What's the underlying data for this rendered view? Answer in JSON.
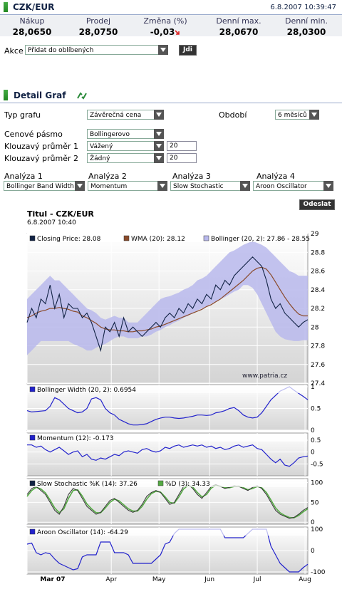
{
  "header": {
    "title": "CZK/EUR",
    "timestamp": "6.8.2007 10:39:47"
  },
  "quote": [
    {
      "label": "Nákup",
      "value": "28,0650"
    },
    {
      "label": "Prodej",
      "value": "28,0750"
    },
    {
      "label": "Změna (%)",
      "value": "-0,03"
    },
    {
      "label": "Denní max.",
      "value": "28,0670"
    },
    {
      "label": "Denní min.",
      "value": "28,0300"
    }
  ],
  "action": {
    "label": "Akce",
    "selected": "Přidat do oblíbených",
    "go_label": "Jdi"
  },
  "section": {
    "title": "Detail Graf"
  },
  "form": {
    "chart_type_label": "Typ grafu",
    "chart_type": "Závěrečná cena",
    "period_label": "Období",
    "period": "6 měsíců",
    "band_label": "Cenové pásmo",
    "band": "Bollingerovo",
    "ma1_label": "Klouzavý průměr 1",
    "ma1": "Vážený",
    "ma1_value": "20",
    "ma2_label": "Klouzavý průměr 2",
    "ma2": "Žádný",
    "ma2_value": "20",
    "analyses": [
      {
        "label": "Analýza 1",
        "value": "Bollinger Band Width"
      },
      {
        "label": "Analýza 2",
        "value": "Momentum"
      },
      {
        "label": "Analýza 3",
        "value": "Slow Stochastic"
      },
      {
        "label": "Analýza 4",
        "value": "Aroon Oscillator"
      }
    ],
    "submit_label": "Odeslat"
  },
  "chart_data": {
    "title": "Titul - CZK/EUR",
    "date": "6.8.2007 10:40",
    "watermark": "www.patria.cz",
    "x_labels": [
      "Mar 07",
      "Apr",
      "May",
      "Jun",
      "Jul",
      "Aug"
    ],
    "colors": {
      "price": "#112244",
      "wma": "#8a4a2a",
      "band": "#b8b8ec",
      "indicator": "#2222cc",
      "pct_d": "#55aa44"
    },
    "main": {
      "type": "line",
      "legend": [
        "Closing Price: 28.08",
        "WMA (20): 28.12",
        "Bollinger (20, 2): 27.86 - 28.55"
      ],
      "yticks": [
        27.4,
        27.6,
        27.8,
        28,
        28.2,
        28.4,
        28.6,
        28.8,
        29
      ],
      "ylim": [
        27.4,
        29.0
      ],
      "price": [
        28.05,
        28.2,
        28.1,
        28.3,
        28.25,
        28.45,
        28.2,
        28.35,
        28.1,
        28.25,
        28.2,
        28.2,
        28.1,
        28.15,
        28.05,
        27.9,
        27.75,
        28.0,
        27.95,
        28.05,
        27.9,
        28.1,
        27.95,
        28.0,
        27.95,
        27.9,
        27.95,
        28.0,
        28.05,
        28.0,
        28.1,
        28.15,
        28.1,
        28.2,
        28.15,
        28.25,
        28.2,
        28.3,
        28.25,
        28.35,
        28.3,
        28.45,
        28.4,
        28.5,
        28.45,
        28.55,
        28.6,
        28.65,
        28.7,
        28.75,
        28.7,
        28.65,
        28.5,
        28.3,
        28.2,
        28.25,
        28.15,
        28.1,
        28.05,
        28.0,
        28.05,
        28.08
      ],
      "wma": [
        28.1,
        28.12,
        28.15,
        28.17,
        28.18,
        28.2,
        28.2,
        28.21,
        28.2,
        28.19,
        28.17,
        28.16,
        28.12,
        28.1,
        28.07,
        28.04,
        28.0,
        27.98,
        27.97,
        27.97,
        27.96,
        27.96,
        27.95,
        27.95,
        27.96,
        27.96,
        27.97,
        27.98,
        28.0,
        28.01,
        28.03,
        28.05,
        28.07,
        28.09,
        28.11,
        28.13,
        28.15,
        28.17,
        28.19,
        28.22,
        28.24,
        28.27,
        28.3,
        28.34,
        28.38,
        28.42,
        28.46,
        28.5,
        28.55,
        28.6,
        28.63,
        28.64,
        28.62,
        28.56,
        28.48,
        28.4,
        28.32,
        28.25,
        28.19,
        28.14,
        28.12,
        28.12
      ],
      "band_upper": [
        28.3,
        28.35,
        28.4,
        28.45,
        28.5,
        28.55,
        28.5,
        28.5,
        28.45,
        28.4,
        28.35,
        28.3,
        28.25,
        28.2,
        28.18,
        28.15,
        28.1,
        28.08,
        28.1,
        28.12,
        28.1,
        28.1,
        28.05,
        28.05,
        28.05,
        28.1,
        28.15,
        28.2,
        28.25,
        28.3,
        28.32,
        28.33,
        28.35,
        28.37,
        28.4,
        28.42,
        28.45,
        28.5,
        28.52,
        28.55,
        28.6,
        28.65,
        28.7,
        28.75,
        28.8,
        28.82,
        28.85,
        28.88,
        28.9,
        28.92,
        28.9,
        28.88,
        28.85,
        28.8,
        28.75,
        28.7,
        28.65,
        28.6,
        28.58,
        28.55,
        28.55,
        28.55
      ],
      "band_lower": [
        27.7,
        27.75,
        27.8,
        27.85,
        27.85,
        27.85,
        27.85,
        27.85,
        27.85,
        27.85,
        27.82,
        27.8,
        27.78,
        27.75,
        27.75,
        27.78,
        27.8,
        27.82,
        27.85,
        27.88,
        27.9,
        27.9,
        27.88,
        27.88,
        27.88,
        27.9,
        27.9,
        27.92,
        27.95,
        27.97,
        28.0,
        28.02,
        28.05,
        28.07,
        28.1,
        28.12,
        28.15,
        28.18,
        28.2,
        28.22,
        28.25,
        28.27,
        28.3,
        28.32,
        28.35,
        28.38,
        28.4,
        28.45,
        28.45,
        28.42,
        28.35,
        28.25,
        28.15,
        28.05,
        27.95,
        27.9,
        27.87,
        27.86,
        27.85,
        27.85,
        27.86,
        27.86
      ]
    },
    "panels": [
      {
        "legend": "Bollinger Width (20, 2): 0.6954",
        "yticks": [
          0,
          0.5,
          1
        ],
        "ylim": [
          0,
          1.05
        ],
        "values": [
          0.45,
          0.42,
          0.43,
          0.44,
          0.45,
          0.55,
          0.75,
          0.7,
          0.6,
          0.5,
          0.45,
          0.4,
          0.42,
          0.5,
          0.72,
          0.75,
          0.7,
          0.5,
          0.4,
          0.35,
          0.25,
          0.2,
          0.15,
          0.12,
          0.12,
          0.13,
          0.15,
          0.2,
          0.25,
          0.28,
          0.3,
          0.3,
          0.28,
          0.27,
          0.28,
          0.3,
          0.32,
          0.35,
          0.35,
          0.34,
          0.35,
          0.4,
          0.42,
          0.45,
          0.5,
          0.52,
          0.45,
          0.35,
          0.3,
          0.28,
          0.3,
          0.4,
          0.55,
          0.7,
          0.8,
          0.9,
          0.95,
          1.0,
          0.92,
          0.85,
          0.78,
          0.7
        ]
      },
      {
        "legend": "Momentum (12): -0.173",
        "yticks": [
          -0.5,
          0,
          0.5
        ],
        "ylim": [
          -1.0,
          0.8
        ],
        "values": [
          0.3,
          0.3,
          0.2,
          0.25,
          0.1,
          0.0,
          0.1,
          0.2,
          0.05,
          -0.1,
          0.0,
          0.05,
          -0.2,
          -0.1,
          -0.3,
          -0.35,
          -0.25,
          -0.3,
          -0.2,
          -0.1,
          -0.15,
          0.0,
          0.05,
          0.0,
          -0.05,
          0.1,
          0.15,
          0.05,
          0.0,
          0.05,
          0.2,
          0.15,
          0.25,
          0.3,
          0.2,
          0.25,
          0.3,
          0.25,
          0.3,
          0.2,
          0.25,
          0.15,
          0.2,
          0.1,
          0.15,
          0.25,
          0.3,
          0.2,
          0.25,
          0.3,
          0.15,
          0.1,
          -0.1,
          -0.3,
          -0.45,
          -0.3,
          -0.55,
          -0.6,
          -0.45,
          -0.25,
          -0.2,
          -0.17
        ]
      },
      {
        "legend": "Slow Stochastic %K (14): 37.26",
        "legend2": "%D (3): 34.33",
        "yticks": [
          0,
          50,
          100
        ],
        "ylim": [
          -5,
          110
        ],
        "values": [
          70,
          85,
          90,
          80,
          70,
          50,
          30,
          20,
          40,
          70,
          85,
          80,
          60,
          40,
          30,
          20,
          25,
          40,
          55,
          60,
          50,
          40,
          30,
          25,
          30,
          45,
          65,
          75,
          80,
          75,
          60,
          45,
          50,
          70,
          90,
          95,
          85,
          70,
          60,
          75,
          90,
          95,
          90,
          85,
          88,
          92,
          90,
          85,
          80,
          88,
          92,
          85,
          70,
          50,
          30,
          20,
          15,
          10,
          12,
          20,
          30,
          37
        ],
        "values2": [
          65,
          80,
          88,
          84,
          74,
          56,
          36,
          24,
          34,
          60,
          80,
          82,
          66,
          46,
          34,
          24,
          24,
          36,
          50,
          58,
          54,
          44,
          34,
          28,
          28,
          40,
          58,
          72,
          78,
          76,
          64,
          50,
          48,
          64,
          84,
          93,
          89,
          75,
          64,
          70,
          86,
          93,
          91,
          87,
          87,
          90,
          91,
          87,
          82,
          85,
          90,
          87,
          75,
          56,
          36,
          24,
          17,
          12,
          11,
          17,
          26,
          34
        ]
      },
      {
        "legend": "Aroon Oscillator (14): -64.29",
        "yticks": [
          -100,
          0,
          100
        ],
        "ylim": [
          -110,
          110
        ],
        "values": [
          30,
          35,
          -10,
          -20,
          -10,
          -15,
          -40,
          -60,
          -70,
          -80,
          -90,
          -85,
          -30,
          -20,
          -20,
          -20,
          40,
          40,
          40,
          -10,
          -10,
          -10,
          -20,
          -60,
          -60,
          -60,
          -60,
          -60,
          -40,
          -20,
          30,
          40,
          80,
          100,
          100,
          100,
          100,
          100,
          100,
          100,
          100,
          100,
          100,
          60,
          60,
          60,
          60,
          60,
          80,
          100,
          100,
          100,
          100,
          20,
          -20,
          -60,
          -80,
          -100,
          -100,
          -100,
          -80,
          -64
        ]
      }
    ]
  }
}
